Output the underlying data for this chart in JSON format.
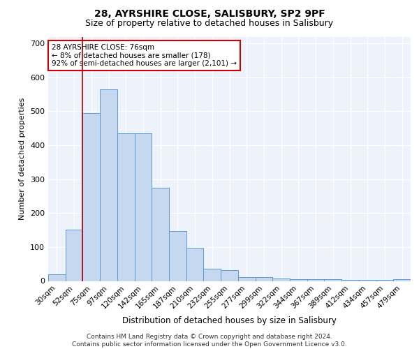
{
  "title1": "28, AYRSHIRE CLOSE, SALISBURY, SP2 9PF",
  "title2": "Size of property relative to detached houses in Salisbury",
  "xlabel": "Distribution of detached houses by size in Salisbury",
  "ylabel": "Number of detached properties",
  "categories": [
    "30sqm",
    "52sqm",
    "75sqm",
    "97sqm",
    "120sqm",
    "142sqm",
    "165sqm",
    "187sqm",
    "210sqm",
    "232sqm",
    "255sqm",
    "277sqm",
    "299sqm",
    "322sqm",
    "344sqm",
    "367sqm",
    "389sqm",
    "412sqm",
    "434sqm",
    "457sqm",
    "479sqm"
  ],
  "values": [
    20,
    152,
    495,
    565,
    435,
    435,
    275,
    148,
    97,
    35,
    32,
    12,
    12,
    8,
    5,
    5,
    5,
    3,
    3,
    3,
    5
  ],
  "bar_color": "#c5d8ef",
  "bar_edge_color": "#5b9bd5",
  "vline_x": 1.5,
  "vline_color": "#aa0000",
  "annotation_text": "28 AYRSHIRE CLOSE: 76sqm\n← 8% of detached houses are smaller (178)\n92% of semi-detached houses are larger (2,101) →",
  "annotation_box_color": "#ffffff",
  "annotation_box_edge": "#cc0000",
  "footer": "Contains HM Land Registry data © Crown copyright and database right 2024.\nContains public sector information licensed under the Open Government Licence v3.0.",
  "bg_color": "#e8eef8",
  "plot_bg": "#eef2fa",
  "ylim": [
    0,
    720
  ],
  "yticks": [
    0,
    100,
    200,
    300,
    400,
    500,
    600,
    700
  ],
  "title1_fontsize": 10,
  "title2_fontsize": 9,
  "xlabel_fontsize": 8.5,
  "ylabel_fontsize": 8,
  "tick_fontsize": 7.5,
  "footer_fontsize": 6.5,
  "ann_fontsize": 7.5
}
